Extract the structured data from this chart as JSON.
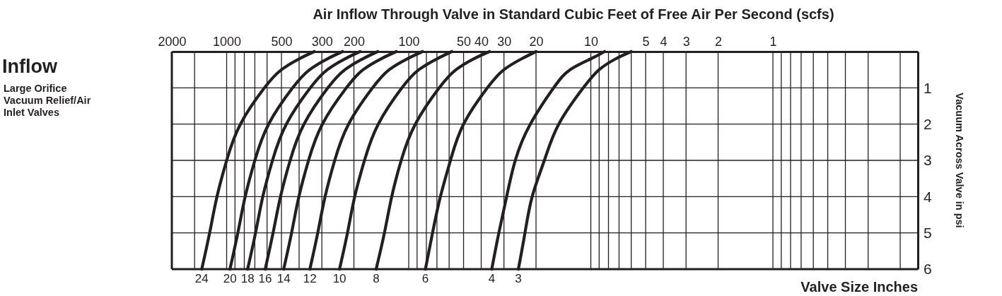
{
  "chart_data": {
    "type": "line",
    "title": "Inflow",
    "subtitle": "Large Orifice Vacuum Relief/Air Inlet Valves",
    "xlabel": "Air Inflow Through Valve in Standard Cubic Feet of Free Air Per Second (scfs)",
    "ylabel": "Vacuum Across Valve in psi",
    "annotations": [
      "Valve Size Inches"
    ],
    "log": "x",
    "grid": true,
    "xlim": [
      2000,
      0.16
    ],
    "ylim": [
      6,
      0
    ],
    "xticks": [
      2000,
      {
        "value": 1500,
        "label": null
      },
      1000,
      {
        "value": 900,
        "label": null
      },
      {
        "value": 800,
        "label": null
      },
      {
        "value": 700,
        "label": null
      },
      {
        "value": 600,
        "label": null
      },
      500,
      {
        "value": 400,
        "label": null
      },
      300,
      200,
      100,
      {
        "value": 90,
        "label": null
      },
      {
        "value": 80,
        "label": null
      },
      {
        "value": 70,
        "label": null
      },
      {
        "value": 60,
        "label": null
      },
      50,
      40,
      30,
      20,
      10,
      {
        "value": 9,
        "label": null
      },
      {
        "value": 8,
        "label": null
      },
      {
        "value": 7,
        "label": null
      },
      {
        "value": 6,
        "label": null
      },
      5,
      4,
      3,
      2,
      1,
      {
        "value": 0.9,
        "label": null
      },
      {
        "value": 0.8,
        "label": null
      },
      {
        "value": 0.7,
        "label": null
      },
      {
        "value": 0.6,
        "label": null
      },
      {
        "value": 0.5,
        "label": null
      },
      {
        "value": 0.4,
        "label": null
      },
      {
        "value": 0.3,
        "label": null
      },
      {
        "value": 0.2,
        "label": null
      }
    ],
    "yticks": [
      1,
      2,
      3,
      4,
      5,
      6
    ],
    "series": [
      {
        "name": "24",
        "color": "#231f20",
        "x": [
          1370,
          1240,
          1130,
          1000,
          840,
          620,
          500,
          400,
          330
        ],
        "values": [
          6,
          5,
          4,
          3,
          2,
          1,
          0.5,
          0.2,
          0
        ]
      },
      {
        "name": "20",
        "color": "#231f20",
        "x": [
          959,
          868,
          791,
          700,
          588,
          434,
          350,
          280,
          231
        ],
        "values": [
          6,
          5,
          4,
          3,
          2,
          1,
          0.5,
          0.2,
          0
        ]
      },
      {
        "name": "18",
        "color": "#231f20",
        "x": [
          767,
          694,
          633,
          560,
          470,
          347,
          280,
          224,
          185
        ],
        "values": [
          6,
          5,
          4,
          3,
          2,
          1,
          0.5,
          0.2,
          0
        ]
      },
      {
        "name": "16",
        "color": "#231f20",
        "x": [
          614,
          556,
          506,
          448,
          376,
          278,
          224,
          179,
          148
        ],
        "values": [
          6,
          5,
          4,
          3,
          2,
          1,
          0.5,
          0.2,
          0
        ]
      },
      {
        "name": "14",
        "color": "#231f20",
        "x": [
          486,
          440,
          401,
          355,
          298,
          220,
          178,
          142,
          117
        ],
        "values": [
          6,
          5,
          4,
          3,
          2,
          1,
          0.5,
          0.2,
          0
        ]
      },
      {
        "name": "12",
        "color": "#231f20",
        "x": [
          349,
          316,
          288,
          255,
          214,
          158,
          128,
          102,
          84
        ],
        "values": [
          6,
          5,
          4,
          3,
          2,
          1,
          0.5,
          0.2,
          0
        ]
      },
      {
        "name": "10",
        "color": "#231f20",
        "x": [
          240,
          217,
          198,
          175,
          147,
          109,
          88,
          70,
          58
        ],
        "values": [
          6,
          5,
          4,
          3,
          2,
          1,
          0.5,
          0.2,
          0
        ]
      },
      {
        "name": "8",
        "color": "#231f20",
        "x": [
          151,
          136,
          124,
          110,
          92,
          68,
          55,
          44,
          36
        ],
        "values": [
          6,
          5,
          4,
          3,
          2,
          1,
          0.5,
          0.2,
          0
        ]
      },
      {
        "name": "6",
        "color": "#231f20",
        "x": [
          81,
          74,
          67,
          59,
          50,
          37,
          30,
          24,
          20
        ],
        "values": [
          6,
          5,
          4,
          3,
          2,
          1,
          0.5,
          0.2,
          0
        ]
      },
      {
        "name": "4",
        "color": "#231f20",
        "x": [
          35,
          32,
          29,
          26,
          21.5,
          16,
          13,
          10,
          8.4
        ],
        "values": [
          6,
          5,
          4,
          3,
          2,
          1,
          0.5,
          0.2,
          0
        ]
      },
      {
        "name": "3",
        "color": "#231f20",
        "x": [
          25,
          23,
          21,
          18,
          15,
          11,
          9,
          7.3,
          6
        ],
        "values": [
          6,
          5,
          4,
          3,
          2,
          1,
          0.5,
          0.2,
          0
        ]
      }
    ]
  }
}
